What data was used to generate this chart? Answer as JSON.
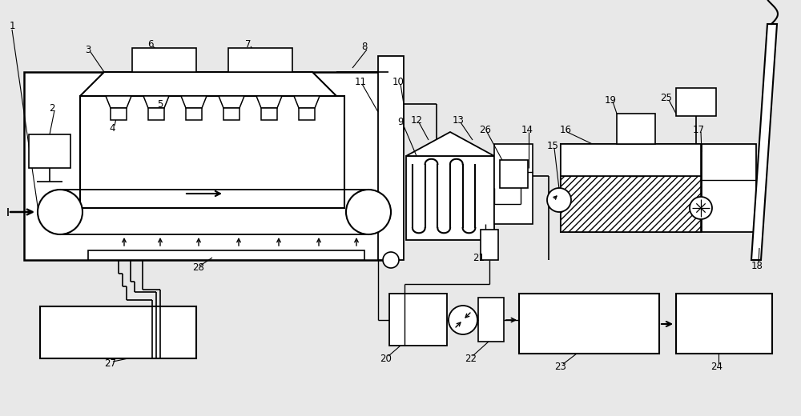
{
  "bg_color": "#e8e8e8",
  "line_color": "#000000",
  "labels": [
    "1",
    "2",
    "3",
    "4",
    "5",
    "6",
    "7",
    "8",
    "9",
    "10",
    "11",
    "12",
    "13",
    "14",
    "15",
    "16",
    "17",
    "18",
    "19",
    "20",
    "21",
    "22",
    "23",
    "24",
    "25",
    "26",
    "27",
    "28"
  ]
}
